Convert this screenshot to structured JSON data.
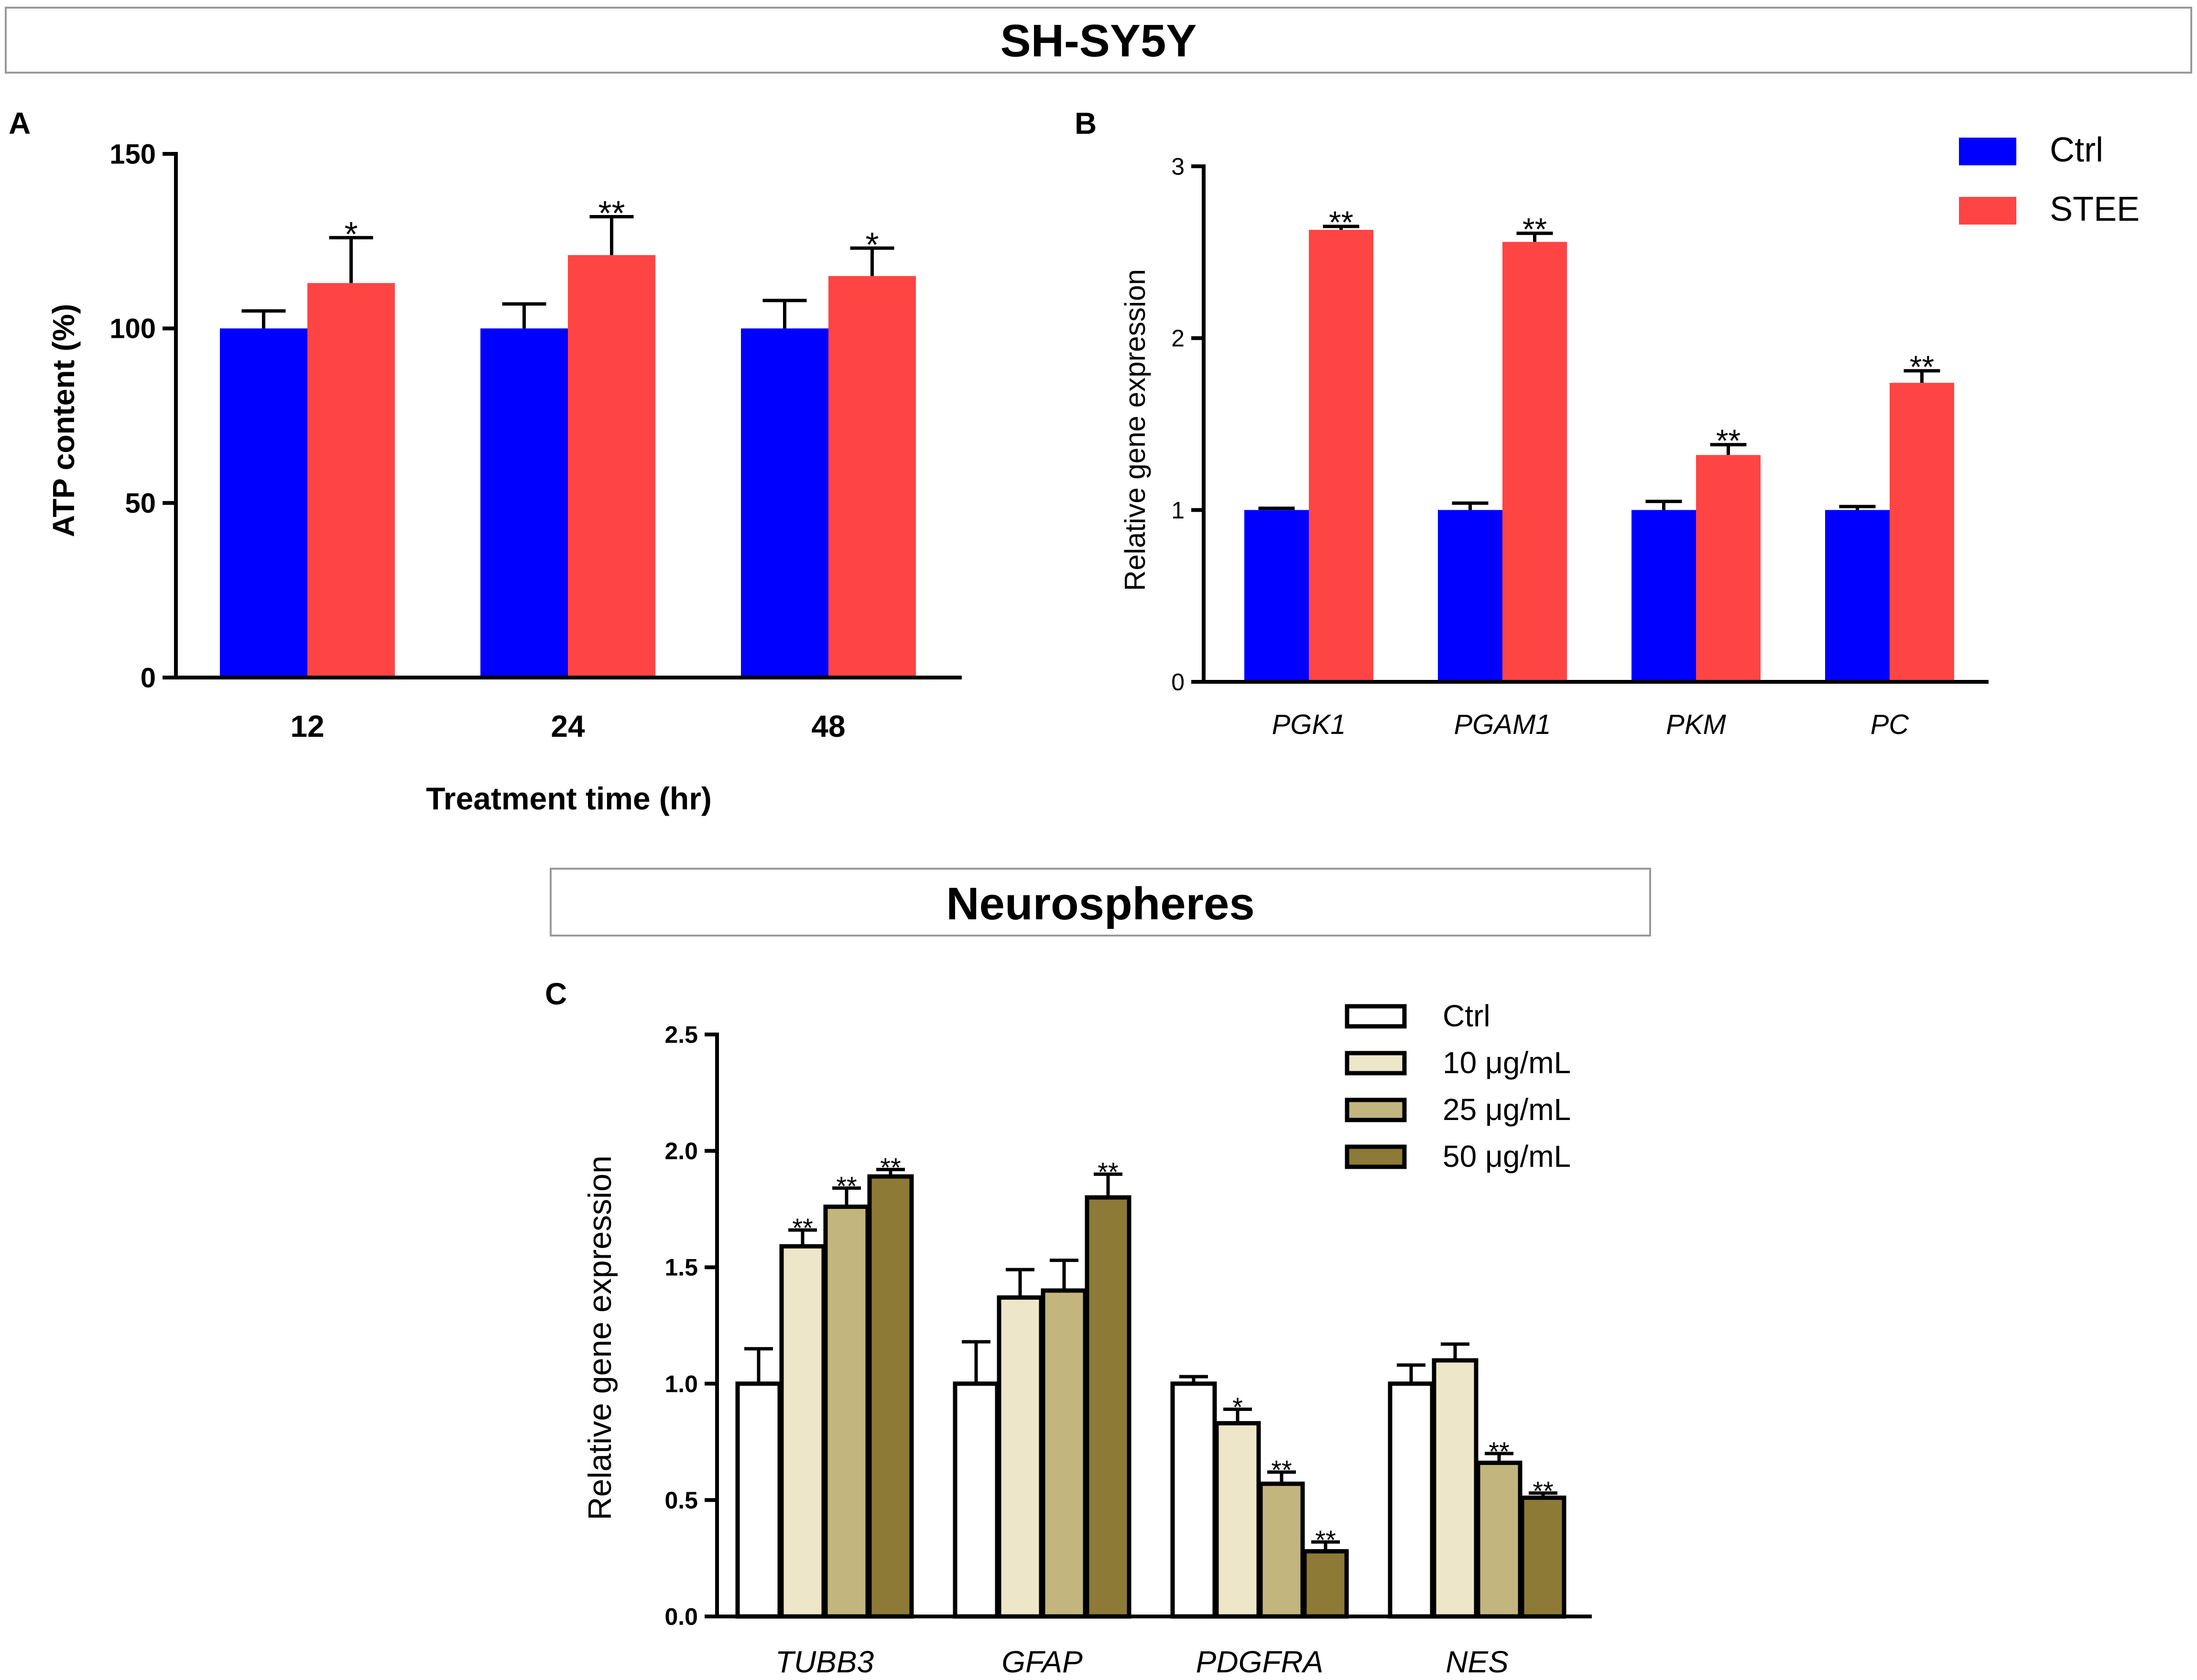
{
  "colors": {
    "ctrl_blue": "#0000FF",
    "stee_red": "#FF4444",
    "c_ctrl": "#FFFFFF",
    "c_10": "#EDE6C8",
    "c_25": "#C2B67E",
    "c_50": "#8C7A36",
    "stroke": "#000000"
  },
  "banners": {
    "top": "SH-SY5Y",
    "bottom": "Neurospheres"
  },
  "chart_data": [
    {
      "panel": "A",
      "type": "bar",
      "title": "",
      "xlabel": "Treatment time (hr)",
      "ylabel": "ATP content (%)",
      "ylim": [
        0,
        150
      ],
      "yticks": [
        0,
        50,
        100,
        150
      ],
      "categories": [
        "12",
        "24",
        "48"
      ],
      "series": [
        {
          "name": "Ctrl",
          "color": "#0000FF",
          "values": [
            100,
            100,
            100
          ],
          "errors": [
            5,
            7,
            8
          ]
        },
        {
          "name": "STEE",
          "color": "#FF4444",
          "values": [
            113,
            121,
            115
          ],
          "errors": [
            13,
            11,
            8
          ]
        }
      ],
      "annotations": [
        {
          "series": 1,
          "index": 0,
          "text": "*"
        },
        {
          "series": 1,
          "index": 1,
          "text": "**"
        },
        {
          "series": 1,
          "index": 2,
          "text": "*"
        }
      ]
    },
    {
      "panel": "B",
      "type": "bar",
      "title": "",
      "xlabel": "",
      "ylabel": "Relative gene expression",
      "ylim": [
        0,
        3
      ],
      "yticks": [
        0,
        1,
        2,
        3
      ],
      "categories": [
        "PGK1",
        "PGAM1",
        "PKM",
        "PC"
      ],
      "series": [
        {
          "name": "Ctrl",
          "color": "#0000FF",
          "values": [
            1.0,
            1.0,
            1.0,
            1.0
          ],
          "errors": [
            0.01,
            0.04,
            0.05,
            0.02
          ]
        },
        {
          "name": "STEE",
          "color": "#FF4444",
          "values": [
            2.63,
            2.56,
            1.32,
            1.74
          ],
          "errors": [
            0.02,
            0.05,
            0.06,
            0.07
          ]
        }
      ],
      "annotations": [
        {
          "series": 1,
          "index": 0,
          "text": "**"
        },
        {
          "series": 1,
          "index": 1,
          "text": "**"
        },
        {
          "series": 1,
          "index": 2,
          "text": "**"
        },
        {
          "series": 1,
          "index": 3,
          "text": "**"
        }
      ],
      "legend": [
        "Ctrl",
        "STEE"
      ],
      "legend_position": "top-right"
    },
    {
      "panel": "C",
      "type": "bar",
      "title": "",
      "xlabel": "",
      "ylabel": "Relative gene expression",
      "ylim": [
        0,
        2.5
      ],
      "yticks": [
        "0.0",
        "0.5",
        "1.0",
        "1.5",
        "2.0",
        "2.5"
      ],
      "categories": [
        "TUBB3",
        "GFAP",
        "PDGFRA",
        "NES"
      ],
      "series": [
        {
          "name": "Ctrl",
          "color": "#FFFFFF",
          "values": [
            1.0,
            1.0,
            1.0,
            1.0
          ],
          "errors": [
            0.15,
            0.18,
            0.03,
            0.08
          ]
        },
        {
          "name": "10 μg/mL",
          "color": "#EDE6C8",
          "values": [
            1.59,
            1.37,
            0.83,
            1.1
          ],
          "errors": [
            0.07,
            0.12,
            0.06,
            0.07
          ]
        },
        {
          "name": "25 μg/mL",
          "color": "#C2B67E",
          "values": [
            1.76,
            1.4,
            0.57,
            0.66
          ],
          "errors": [
            0.08,
            0.13,
            0.05,
            0.04
          ]
        },
        {
          "name": "50 μg/mL",
          "color": "#8C7A36",
          "values": [
            1.89,
            1.8,
            0.28,
            0.51
          ],
          "errors": [
            0.03,
            0.1,
            0.04,
            0.02
          ]
        }
      ],
      "annotations": [
        {
          "series": 1,
          "index": 0,
          "text": "**"
        },
        {
          "series": 2,
          "index": 0,
          "text": "**"
        },
        {
          "series": 3,
          "index": 0,
          "text": "**"
        },
        {
          "series": 3,
          "index": 1,
          "text": "**"
        },
        {
          "series": 1,
          "index": 2,
          "text": "*"
        },
        {
          "series": 2,
          "index": 2,
          "text": "**"
        },
        {
          "series": 3,
          "index": 2,
          "text": "**"
        },
        {
          "series": 2,
          "index": 3,
          "text": "**"
        },
        {
          "series": 3,
          "index": 3,
          "text": "**"
        }
      ],
      "legend": [
        "Ctrl",
        "10 μg/mL",
        "25 μg/mL",
        "50 μg/mL"
      ],
      "legend_position": "top-right"
    }
  ]
}
